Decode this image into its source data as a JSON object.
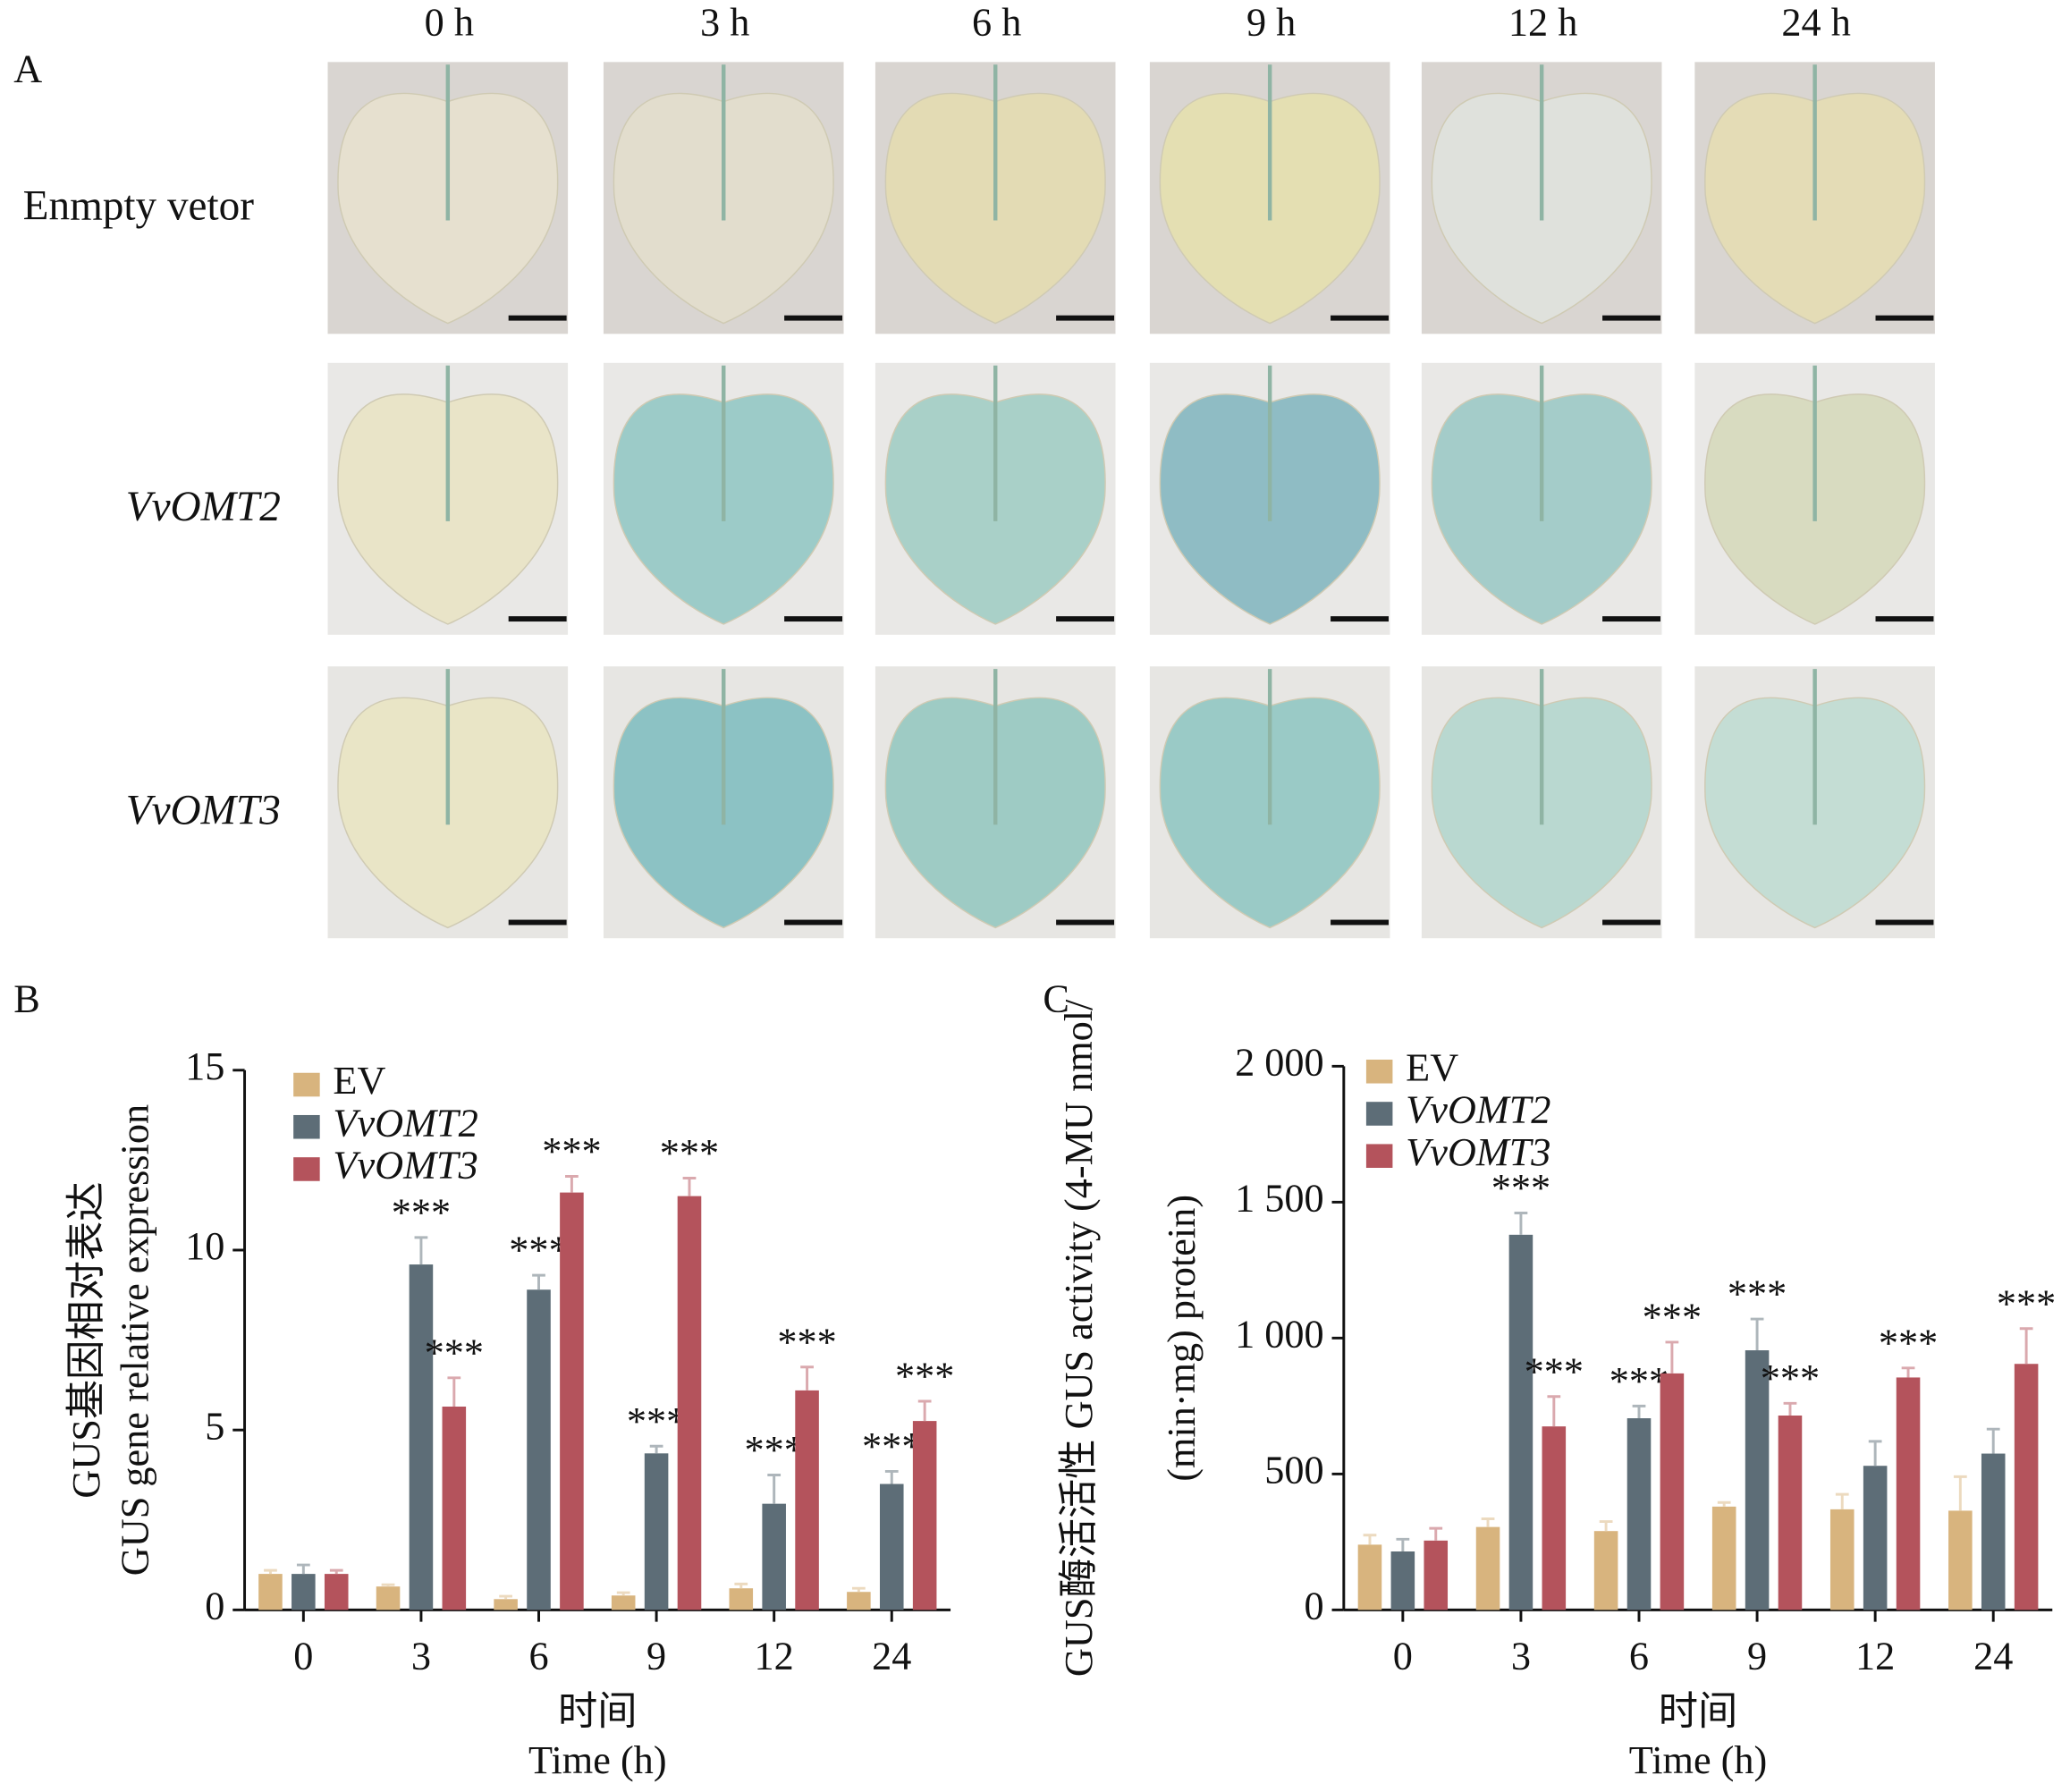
{
  "panel_a": {
    "label": "A",
    "columns": [
      "0 h",
      "3 h",
      "6 h",
      "9 h",
      "12 h",
      "24 h"
    ],
    "rows": [
      "Enmpty vetor",
      "VvOMT2",
      "VvOMT3"
    ]
  },
  "chart_data": [
    {
      "type": "bar",
      "panel_label": "B",
      "ylabel": [
        "GUS基因相对表达",
        "GUS gene relative expression"
      ],
      "xlabel": [
        "时间",
        "Time (h)"
      ],
      "categories": [
        "0",
        "3",
        "6",
        "9",
        "12",
        "24"
      ],
      "ylim": [
        0,
        15
      ],
      "yticks": [
        0,
        5,
        10,
        15
      ],
      "series": [
        {
          "name": "EV",
          "color": "#d8b47e",
          "values": [
            1.0,
            0.65,
            0.3,
            0.4,
            0.6,
            0.5
          ],
          "errors": [
            0.1,
            0.05,
            0.08,
            0.08,
            0.12,
            0.1
          ],
          "annotations": [
            null,
            null,
            null,
            null,
            null,
            null
          ]
        },
        {
          "name": "VvOMT2",
          "color": "#5d6d77",
          "values": [
            1.0,
            9.6,
            8.9,
            4.35,
            2.95,
            3.5
          ],
          "errors": [
            0.25,
            0.75,
            0.4,
            0.2,
            0.8,
            0.35
          ],
          "annotations": [
            null,
            "***",
            "***",
            "***",
            "***",
            "***"
          ]
        },
        {
          "name": "VvOMT3",
          "color": "#b4535c",
          "values": [
            1.0,
            5.65,
            11.6,
            11.5,
            6.1,
            5.25
          ],
          "errors": [
            0.1,
            0.8,
            0.45,
            0.5,
            0.65,
            0.55
          ],
          "annotations": [
            null,
            "***",
            "***",
            "***",
            "***",
            "***"
          ]
        }
      ]
    },
    {
      "type": "bar",
      "panel_label": "C",
      "ylabel": [
        "GUS酶活活性 GUS activity (4-MU nmol/",
        "(min·mg) protein)"
      ],
      "xlabel": [
        "时间",
        "Time (h)"
      ],
      "categories": [
        "0",
        "3",
        "6",
        "9",
        "12",
        "24"
      ],
      "ylim": [
        0,
        2000
      ],
      "yticks": [
        0,
        500,
        {
          "value": 1000,
          "label": "1 000"
        },
        {
          "value": 1500,
          "label": "1 500"
        },
        {
          "value": 2000,
          "label": "2 000"
        }
      ],
      "series": [
        {
          "name": "EV",
          "color": "#d8b47e",
          "values": [
            240,
            305,
            290,
            380,
            370,
            365
          ],
          "errors": [
            35,
            30,
            35,
            15,
            55,
            125
          ],
          "annotations": [
            null,
            null,
            null,
            null,
            null,
            null
          ]
        },
        {
          "name": "VvOMT2",
          "color": "#5d6d77",
          "values": [
            215,
            1380,
            705,
            955,
            530,
            575
          ],
          "errors": [
            45,
            80,
            45,
            115,
            90,
            90
          ],
          "annotations": [
            null,
            "***",
            "***",
            "***",
            null,
            null
          ]
        },
        {
          "name": "VvOMT3",
          "color": "#b4535c",
          "values": [
            255,
            675,
            870,
            715,
            855,
            905
          ],
          "errors": [
            45,
            110,
            115,
            45,
            35,
            130
          ],
          "annotations": [
            null,
            "***",
            "***",
            "***",
            "***",
            "***"
          ]
        }
      ]
    }
  ]
}
